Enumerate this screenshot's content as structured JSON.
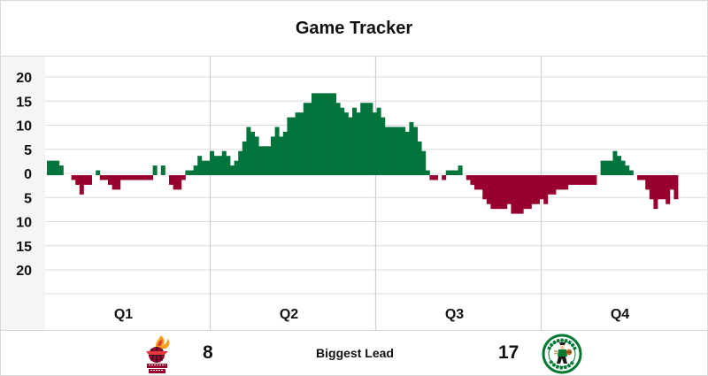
{
  "title": "Game Tracker",
  "colors": {
    "home": "#03753c",
    "away": "#98002e",
    "grid": "#dddddd",
    "axis_bg": "#f5f5f5"
  },
  "chart_data": {
    "type": "bar",
    "title": "Game Tracker",
    "xlabel": "",
    "ylabel": "",
    "ylim": [
      -20,
      20
    ],
    "yticks": [
      20,
      15,
      10,
      5,
      0,
      5,
      10,
      15,
      20
    ],
    "grid": true,
    "quarters": [
      "Q1",
      "Q2",
      "Q3",
      "Q4"
    ],
    "series": [
      {
        "values": [
          3,
          3,
          3,
          2,
          0,
          0,
          -1,
          -2,
          -4,
          -2,
          -2,
          0,
          1,
          -1,
          -1,
          -2,
          -3,
          -3,
          -1,
          -1,
          -1,
          -1,
          -1,
          -1,
          -1,
          -1,
          2,
          0,
          2,
          0,
          -2,
          -3,
          -3,
          -1,
          1,
          1,
          2,
          4,
          3,
          3,
          5,
          4,
          4,
          5,
          4,
          2,
          3,
          5,
          7,
          10,
          9,
          8,
          6,
          6,
          6,
          8,
          10,
          8,
          9,
          12,
          12,
          13,
          13,
          15,
          15,
          17,
          17,
          17,
          17,
          17,
          17,
          15,
          14,
          13,
          12,
          14,
          13,
          15,
          15,
          15,
          13,
          14,
          12,
          10,
          10,
          10,
          10,
          10,
          9,
          11,
          10,
          7,
          5,
          1,
          -1,
          -1,
          0,
          -1,
          1,
          1,
          1,
          2,
          0,
          -1,
          -2,
          -3,
          -3,
          -5,
          -6,
          -7,
          -7,
          -7,
          -7,
          -6,
          -8,
          -8,
          -8,
          -7,
          -7,
          -6,
          -6,
          -5,
          -6,
          -4,
          -4,
          -3,
          -3,
          -3,
          -2,
          -2,
          -2,
          -2,
          -2,
          -2,
          -2,
          0,
          3,
          3,
          3,
          5,
          4,
          3,
          2,
          1,
          0,
          -1,
          -1,
          -3,
          -5,
          -7,
          -5,
          -5,
          -6,
          -3,
          -5
        ]
      }
    ]
  },
  "footer": {
    "away_team_logo": "miami-heat-logo",
    "away_biggest_lead": "8",
    "label": "Biggest Lead",
    "home_biggest_lead": "17",
    "home_team_logo": "boston-celtics-logo"
  }
}
